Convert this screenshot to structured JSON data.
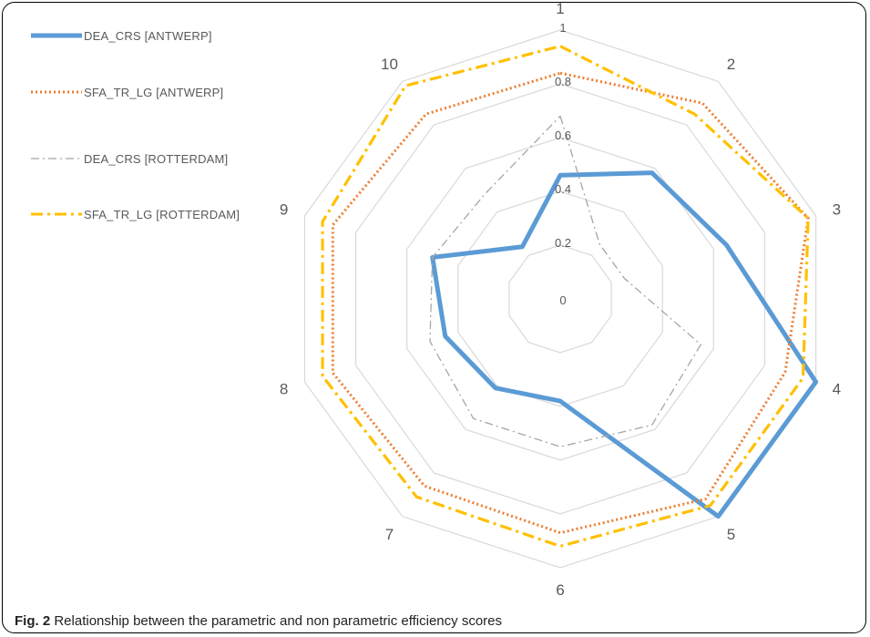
{
  "caption": {
    "label": "Fig. 2",
    "text": "Relationship between the parametric and non parametric efficiency scores"
  },
  "chart_data": {
    "type": "radar",
    "title": "",
    "categories": [
      "1",
      "2",
      "3",
      "4",
      "5",
      "6",
      "7",
      "8",
      "9",
      "10"
    ],
    "radial_ticks": [
      "0",
      "0.2",
      "0.4",
      "0.6",
      "0.8",
      "1"
    ],
    "rlim": [
      0,
      1
    ],
    "grid": true,
    "legend_position": "top-left",
    "series": [
      {
        "name": "DEA_CRS [ANTWERP]",
        "values": [
          0.46,
          0.58,
          0.65,
          1.0,
          1.0,
          0.38,
          0.41,
          0.45,
          0.5,
          0.24
        ],
        "color": "#5B9BD5",
        "style": "solid"
      },
      {
        "name": "SFA_TR_LG [ANTWERP]",
        "values": [
          0.84,
          0.9,
          0.97,
          0.88,
          0.92,
          0.87,
          0.86,
          0.89,
          0.89,
          0.85
        ],
        "color": "#ED7D31",
        "style": "dotted"
      },
      {
        "name": "DEA_CRS [ROTTERDAM]",
        "values": [
          0.68,
          0.25,
          0.25,
          0.55,
          0.58,
          0.55,
          0.55,
          0.51,
          0.5,
          0.48
        ],
        "color": "#A5A5A5",
        "style": "dash-dot"
      },
      {
        "name": "SFA_TR_LG [ROTTERDAM]",
        "values": [
          0.94,
          0.85,
          0.97,
          0.95,
          0.95,
          0.92,
          0.91,
          0.93,
          0.93,
          0.98
        ],
        "color": "#FFC000",
        "style": "dash-dot"
      }
    ]
  }
}
